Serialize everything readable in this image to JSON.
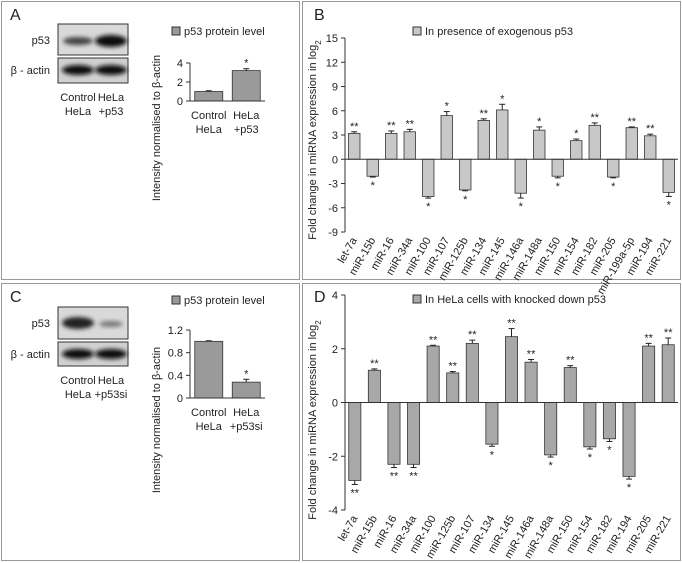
{
  "chart_data": [
    {
      "type": "bar",
      "panel": "A",
      "legend": "p53 protein level",
      "y_label": "Intensity normalised to β-actin",
      "blot_rows": [
        "p53",
        "β - actin"
      ],
      "blot_lanes": [
        [
          "Control",
          "HeLa"
        ],
        [
          "HeLa",
          "+p53"
        ]
      ],
      "categories": [
        [
          "Control",
          "HeLa"
        ],
        [
          "HeLa",
          "+p53"
        ]
      ],
      "values": [
        1.0,
        3.2
      ],
      "errors": [
        0.08,
        0.2
      ],
      "annotations": [
        null,
        "*"
      ],
      "color": "#9a9a9a",
      "ylim": [
        0,
        4
      ],
      "yticks": [
        0,
        2,
        4
      ]
    },
    {
      "type": "bar",
      "panel": "B",
      "legend": "In presence of exogenous p53",
      "y_label": "Fold change in miRNA expression in log",
      "y_label_sub": "2",
      "categories": [
        "let-7a",
        "miR-15b",
        "miR-16",
        "miR-34a",
        "miR-100",
        "miR-107",
        "miR-125b",
        "miR-134",
        "miR-145",
        "miR-146a",
        "miR-148a",
        "miR-150",
        "miR-154",
        "miR-182",
        "miR-205",
        "miR-199a-5p",
        "miR-194",
        "miR-221"
      ],
      "values": [
        3.2,
        -2.1,
        3.2,
        3.4,
        -4.6,
        5.4,
        -3.8,
        4.8,
        6.1,
        -4.2,
        3.6,
        -2.1,
        2.3,
        4.2,
        -2.2,
        3.9,
        2.9,
        -4.1
      ],
      "errors": [
        0.2,
        0.1,
        0.3,
        0.3,
        0.2,
        0.5,
        0.1,
        0.2,
        0.7,
        0.6,
        0.4,
        0.2,
        0.2,
        0.3,
        0.1,
        0.1,
        0.2,
        0.5
      ],
      "annotations": [
        "**",
        "*",
        "**",
        "**",
        "*",
        "*",
        "*",
        "**",
        "*",
        "*",
        "*",
        "*",
        "*",
        "**",
        "*",
        "**",
        "**",
        "*"
      ],
      "color": "#c8c8c8",
      "ylim": [
        -9,
        15
      ],
      "yticks": [
        -9,
        -6,
        -3,
        0,
        3,
        6,
        9,
        12,
        15
      ]
    },
    {
      "type": "bar",
      "panel": "C",
      "legend": "p53 protein level",
      "y_label": "Intensity normalised to β-actin",
      "blot_rows": [
        "p53",
        "β - actin"
      ],
      "blot_lanes": [
        [
          "Control",
          "HeLa"
        ],
        [
          "HeLa",
          "+p53si"
        ]
      ],
      "categories": [
        [
          "Control",
          "HeLa"
        ],
        [
          "HeLa",
          "+p53si"
        ]
      ],
      "values": [
        1.0,
        0.28
      ],
      "errors": [
        0.01,
        0.05
      ],
      "annotations": [
        null,
        "*"
      ],
      "color": "#9a9a9a",
      "ylim": [
        0,
        1.2
      ],
      "yticks": [
        0,
        0.4,
        0.8,
        1.2
      ]
    },
    {
      "type": "bar",
      "panel": "D",
      "legend": "In HeLa cells with knocked down p53",
      "y_label": "Fold change in miRNA expression in log",
      "y_label_sub": "2",
      "categories": [
        "let-7a",
        "miR-15b",
        "miR-16",
        "miR-34a",
        "miR-100",
        "miR-125b",
        "miR-107",
        "miR-134",
        "miR-145",
        "miR-146a",
        "miR-148a",
        "miR-150",
        "miR-154",
        "miR-182",
        "miR-194",
        "miR-205",
        "miR-221"
      ],
      "values": [
        -2.9,
        1.2,
        -2.3,
        -2.3,
        2.1,
        1.1,
        2.2,
        -1.55,
        2.45,
        1.5,
        -1.95,
        1.3,
        -1.65,
        -1.35,
        -2.75,
        2.1,
        2.15
      ],
      "errors": [
        0.15,
        0.05,
        0.12,
        0.12,
        0.03,
        0.05,
        0.12,
        0.08,
        0.3,
        0.1,
        0.08,
        0.07,
        0.08,
        0.1,
        0.1,
        0.1,
        0.25
      ],
      "annotations": [
        "**",
        "**",
        "**",
        "**",
        "**",
        "**",
        "**",
        "*",
        "**",
        "**",
        "*",
        "**",
        "*",
        "*",
        "*",
        "**",
        "**"
      ],
      "color": "#a8a8a8",
      "ylim": [
        -4,
        4
      ],
      "yticks": [
        -4,
        -2,
        0,
        2,
        4
      ]
    }
  ]
}
